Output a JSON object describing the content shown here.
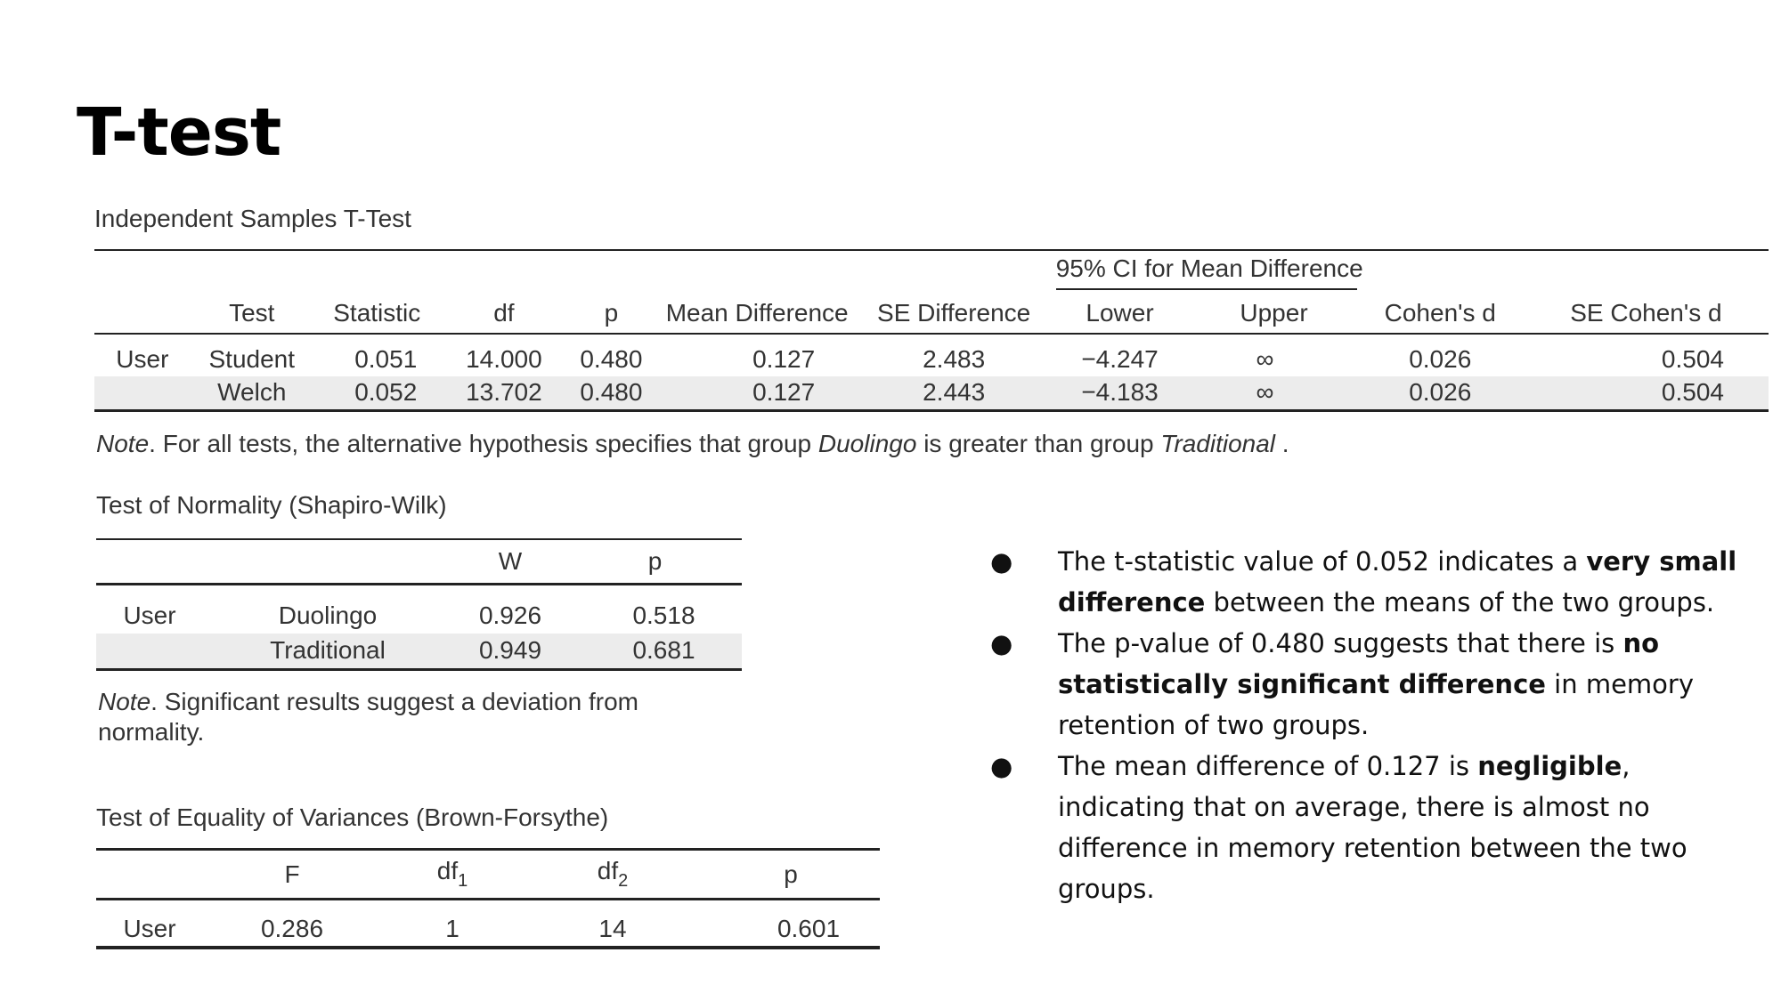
{
  "slide": {
    "title": "T-test"
  },
  "ttest": {
    "caption": "Independent Samples T-Test",
    "ci_header": "95% CI for Mean Difference",
    "headers": [
      "",
      "Test",
      "Statistic",
      "df",
      "p",
      "Mean Difference",
      "SE Difference",
      "Lower",
      "Upper",
      "Cohen's d",
      "SE Cohen's d"
    ],
    "rows": [
      [
        "User",
        "Student",
        "0.051",
        "14.000",
        "0.480",
        "0.127",
        "2.483",
        "−4.247",
        "∞",
        "0.026",
        "0.504"
      ],
      [
        "",
        "Welch",
        "0.052",
        "13.702",
        "0.480",
        "0.127",
        "2.443",
        "−4.183",
        "∞",
        "0.026",
        "0.504"
      ]
    ],
    "note": {
      "label": "Note",
      "text1": ". For all tests, the alternative hypothesis specifies that group ",
      "group1": "Duolingo",
      "text2": " is greater than group ",
      "group2": "Traditional",
      "text3": " ."
    }
  },
  "normality": {
    "caption": "Test of Normality (Shapiro-Wilk)",
    "headers": [
      "",
      "",
      "W",
      "p"
    ],
    "rows": [
      [
        "User",
        "Duolingo",
        "0.926",
        "0.518"
      ],
      [
        "",
        "Traditional",
        "0.949",
        "0.681"
      ]
    ],
    "note": {
      "label": "Note",
      "line1": ". Significant results suggest a deviation from",
      "line2": "normality."
    }
  },
  "variances": {
    "caption": "Test of Equality of Variances (Brown-Forsythe)",
    "headers": {
      "f": "F",
      "df1_base": "df",
      "df1_sub": "1",
      "df2_base": "df",
      "df2_sub": "2",
      "p": "p"
    },
    "rows": [
      [
        "User",
        "0.286",
        "1",
        "14",
        "0.601"
      ]
    ]
  },
  "bullets": [
    {
      "dot": "●",
      "pre": "The t-statistic value of 0.052 indicates a ",
      "bold": "very small difference",
      "post": " between the means of the two groups."
    },
    {
      "dot": "●",
      "pre": "The p-value of 0.480 suggests that there is ",
      "bold": "no statistically significant difference",
      "post": " in memory retention of two groups."
    },
    {
      "dot": "●",
      "pre": "The mean difference of 0.127 is ",
      "bold": "negligible",
      "post": ", indicating that on average, there is almost no difference in memory retention between the two groups."
    }
  ]
}
